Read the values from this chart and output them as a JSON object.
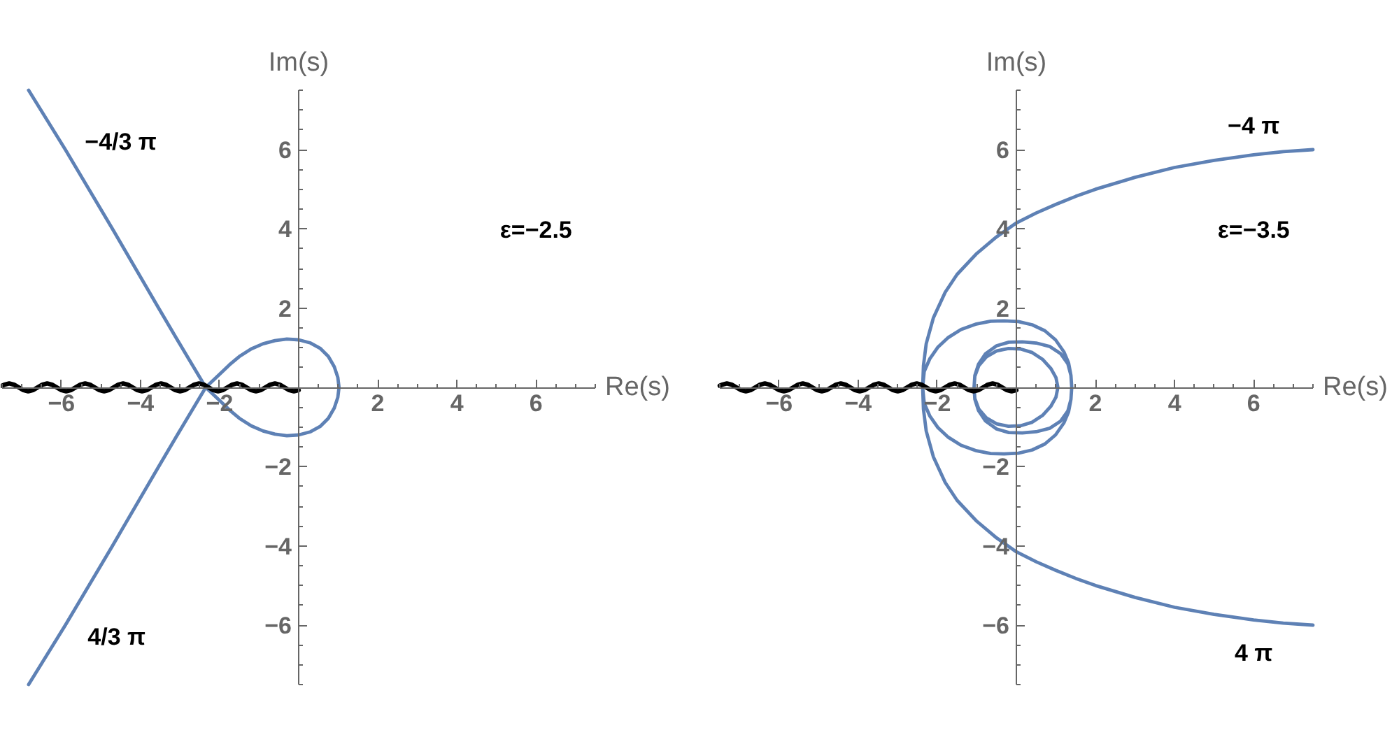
{
  "chart_data": [
    {
      "type": "line",
      "xlabel": "Re(s)",
      "ylabel": "Im(s)",
      "xlim": [
        -7.5,
        7.5
      ],
      "ylim": [
        -7.5,
        7.5
      ],
      "xticks": [
        {
          "value": -7.5,
          "label": null
        },
        {
          "value": -7,
          "label": null
        },
        {
          "value": -6.5,
          "label": null
        },
        -6,
        {
          "value": -5.5,
          "label": null
        },
        {
          "value": -5,
          "label": null
        },
        {
          "value": -4.5,
          "label": null
        },
        -4,
        {
          "value": -3.5,
          "label": null
        },
        {
          "value": -3,
          "label": null
        },
        {
          "value": -2.5,
          "label": null
        },
        -2,
        {
          "value": -1.5,
          "label": null
        },
        {
          "value": -1,
          "label": null
        },
        {
          "value": -0.5,
          "label": null
        },
        {
          "value": 0.5,
          "label": null
        },
        {
          "value": 1,
          "label": null
        },
        {
          "value": 1.5,
          "label": null
        },
        2,
        {
          "value": 2.5,
          "label": null
        },
        {
          "value": 3,
          "label": null
        },
        {
          "value": 3.5,
          "label": null
        },
        4,
        {
          "value": 4.5,
          "label": null
        },
        {
          "value": 5,
          "label": null
        },
        {
          "value": 5.5,
          "label": null
        },
        6,
        {
          "value": 6.5,
          "label": null
        },
        {
          "value": 7,
          "label": null
        },
        {
          "value": 7.5,
          "label": null
        }
      ],
      "yticks": [
        {
          "value": -7.5,
          "label": null
        },
        {
          "value": -7,
          "label": null
        },
        {
          "value": -6.5,
          "label": null
        },
        -6,
        {
          "value": -5.5,
          "label": null
        },
        {
          "value": -5,
          "label": null
        },
        {
          "value": -4.5,
          "label": null
        },
        -4,
        {
          "value": -3.5,
          "label": null
        },
        {
          "value": -3,
          "label": null
        },
        {
          "value": -2.5,
          "label": null
        },
        -2,
        {
          "value": -1.5,
          "label": null
        },
        {
          "value": -1,
          "label": null
        },
        {
          "value": -0.5,
          "label": null
        },
        {
          "value": 0.5,
          "label": null
        },
        {
          "value": 1,
          "label": null
        },
        {
          "value": 1.5,
          "label": null
        },
        2,
        {
          "value": 2.5,
          "label": null
        },
        {
          "value": 3,
          "label": null
        },
        {
          "value": 3.5,
          "label": null
        },
        4,
        {
          "value": 4.5,
          "label": null
        },
        {
          "value": 5,
          "label": null
        },
        {
          "value": 5.5,
          "label": null
        },
        6,
        {
          "value": 6.5,
          "label": null
        },
        {
          "value": 7,
          "label": null
        },
        {
          "value": 7.5,
          "label": null
        }
      ],
      "series": [
        {
          "color": "#5e81b5",
          "x": [
            -6.83,
            -5.9,
            -4.71,
            -3.54,
            -2.95,
            -2.35,
            -2.0,
            -1.75,
            -1.5,
            -1.2,
            -0.9,
            -0.6,
            -0.3,
            0.0,
            0.3,
            0.55,
            0.75,
            0.9,
            0.99,
            1.02,
            0.99,
            0.9,
            0.75,
            0.55,
            0.3,
            0.0,
            -0.3,
            -0.6,
            -0.9,
            -1.2,
            -1.5,
            -1.75,
            -2.0,
            -2.35,
            -2.95,
            -3.54,
            -4.71,
            -5.9,
            -6.83
          ],
          "values": [
            7.5,
            6,
            4,
            2,
            1,
            0,
            -0.33,
            -0.57,
            -0.78,
            -0.97,
            -1.1,
            -1.18,
            -1.22,
            -1.2,
            -1.12,
            -0.98,
            -0.78,
            -0.52,
            -0.25,
            0,
            0.25,
            0.52,
            0.78,
            0.98,
            1.12,
            1.2,
            1.22,
            1.18,
            1.1,
            0.97,
            0.78,
            0.57,
            0.33,
            0,
            -1,
            -2,
            -4,
            -6,
            -7.5
          ]
        },
        {
          "color": "#000000",
          "x": [
            -7.5,
            -7.44,
            -7.32,
            -7.2,
            -7.08,
            -6.96,
            -6.84,
            -6.72,
            -6.6,
            -6.48,
            -6.36,
            -6.24,
            -6.12,
            -6.0,
            -5.88,
            -5.76,
            -5.64,
            -5.52,
            -5.4,
            -5.28,
            -5.16,
            -5.04,
            -4.92,
            -4.8,
            -4.68,
            -4.56,
            -4.44,
            -4.32,
            -4.2,
            -4.08,
            -3.96,
            -3.84,
            -3.72,
            -3.6,
            -3.48,
            -3.36,
            -3.24,
            -3.12,
            -3.0,
            -2.88,
            -2.76,
            -2.64,
            -2.52,
            -2.4,
            -2.28,
            -2.16,
            -2.04,
            -1.92,
            -1.8,
            -1.68,
            -1.56,
            -1.44,
            -1.32,
            -1.2,
            -1.08,
            -0.96,
            -0.84,
            -0.72,
            -0.6,
            -0.48,
            -0.36,
            -0.24,
            -0.12,
            0
          ],
          "values": [
            0.04,
            0.07,
            0.1,
            0.07,
            0,
            -0.07,
            -0.1,
            -0.07,
            0,
            0.07,
            0.1,
            0.07,
            0,
            -0.07,
            -0.1,
            -0.07,
            0,
            0.07,
            0.1,
            0.07,
            0,
            -0.07,
            -0.1,
            -0.07,
            0,
            0.07,
            0.1,
            0.07,
            0,
            -0.07,
            -0.1,
            -0.07,
            0,
            0.07,
            0.1,
            0.07,
            0,
            -0.07,
            -0.1,
            -0.07,
            0,
            0.07,
            0.1,
            0.07,
            0,
            -0.07,
            -0.1,
            -0.07,
            0,
            0.07,
            0.1,
            0.07,
            0,
            -0.07,
            -0.1,
            -0.07,
            0,
            0.07,
            0.1,
            0.07,
            0,
            -0.07,
            -0.1,
            -0.07
          ]
        }
      ],
      "annotations": [
        "−4/3 π",
        "4/3 π",
        "ε=−2.5"
      ]
    },
    {
      "type": "line",
      "xlabel": "Re(s)",
      "ylabel": "Im(s)",
      "xlim": [
        -7.5,
        7.5
      ],
      "ylim": [
        -7.5,
        7.5
      ],
      "xticks": [
        {
          "value": -7.5,
          "label": null
        },
        {
          "value": -7,
          "label": null
        },
        {
          "value": -6.5,
          "label": null
        },
        -6,
        {
          "value": -5.5,
          "label": null
        },
        {
          "value": -5,
          "label": null
        },
        {
          "value": -4.5,
          "label": null
        },
        -4,
        {
          "value": -3.5,
          "label": null
        },
        {
          "value": -3,
          "label": null
        },
        {
          "value": -2.5,
          "label": null
        },
        -2,
        {
          "value": -1.5,
          "label": null
        },
        {
          "value": -1,
          "label": null
        },
        {
          "value": -0.5,
          "label": null
        },
        {
          "value": 0.5,
          "label": null
        },
        {
          "value": 1,
          "label": null
        },
        {
          "value": 1.5,
          "label": null
        },
        2,
        {
          "value": 2.5,
          "label": null
        },
        {
          "value": 3,
          "label": null
        },
        {
          "value": 3.5,
          "label": null
        },
        4,
        {
          "value": 4.5,
          "label": null
        },
        {
          "value": 5,
          "label": null
        },
        {
          "value": 5.5,
          "label": null
        },
        6,
        {
          "value": 6.5,
          "label": null
        },
        {
          "value": 7,
          "label": null
        },
        {
          "value": 7.5,
          "label": null
        }
      ],
      "yticks": [
        {
          "value": -7.5,
          "label": null
        },
        {
          "value": -7,
          "label": null
        },
        {
          "value": -6.5,
          "label": null
        },
        -6,
        {
          "value": -5.5,
          "label": null
        },
        {
          "value": -5,
          "label": null
        },
        {
          "value": -4.5,
          "label": null
        },
        -4,
        {
          "value": -3.5,
          "label": null
        },
        {
          "value": -3,
          "label": null
        },
        {
          "value": -2.5,
          "label": null
        },
        -2,
        {
          "value": -1.5,
          "label": null
        },
        {
          "value": -1,
          "label": null
        },
        {
          "value": -0.5,
          "label": null
        },
        {
          "value": 0.5,
          "label": null
        },
        {
          "value": 1,
          "label": null
        },
        {
          "value": 1.5,
          "label": null
        },
        2,
        {
          "value": 2.5,
          "label": null
        },
        {
          "value": 3,
          "label": null
        },
        {
          "value": 3.5,
          "label": null
        },
        4,
        {
          "value": 4.5,
          "label": null
        },
        {
          "value": 5,
          "label": null
        },
        {
          "value": 5.5,
          "label": null
        },
        6,
        {
          "value": 6.5,
          "label": null
        },
        {
          "value": 7,
          "label": null
        },
        {
          "value": 7.5,
          "label": null
        }
      ],
      "series": [
        {
          "color": "#5e81b5",
          "x": [
            7.5,
            6.75,
            6,
            5,
            4,
            3,
            2,
            1.5,
            1,
            0.5,
            0,
            -0.5,
            -1,
            -1.5,
            -1.8,
            -2.1,
            -2.28,
            -2.35,
            -2.37,
            -2.33,
            -2.19,
            -1.98,
            -1.72,
            -1.4,
            -1.01,
            -0.65,
            -0.31,
            0.05,
            0.4,
            0.72,
            0.99,
            1.2,
            1.32,
            1.38,
            1.4,
            1.38,
            1.3,
            1.12,
            0.85,
            0.5,
            0.15,
            -0.19,
            -0.5,
            -0.78,
            -0.96,
            -1.05,
            -1.07,
            -1.05,
            -0.95,
            -0.76,
            -0.5,
            -0.2,
            0.1,
            0.4,
            0.67,
            0.87,
            1.0,
            1.05,
            1.0,
            0.87,
            0.67,
            0.4,
            0.1,
            -0.2,
            -0.5,
            -0.76,
            -0.95,
            -1.05,
            -1.07,
            -1.05,
            -0.96,
            -0.78,
            -0.5,
            -0.19,
            0.15,
            0.5,
            0.85,
            1.12,
            1.3,
            1.38,
            1.4,
            1.38,
            1.32,
            1.2,
            0.99,
            0.72,
            0.4,
            0.05,
            -0.31,
            -0.65,
            -1.01,
            -1.4,
            -1.72,
            -1.98,
            -2.19,
            -2.33,
            -2.37,
            -2.35,
            -2.28,
            -2.1,
            -1.8,
            -1.5,
            -1,
            -0.5,
            0,
            0.5,
            1,
            1.5,
            2,
            3,
            4,
            5,
            6,
            6.75,
            7.5
          ],
          "values": [
            6.0,
            5.95,
            5.87,
            5.73,
            5.55,
            5.3,
            5.0,
            4.82,
            4.62,
            4.4,
            4.15,
            3.8,
            3.38,
            2.85,
            2.4,
            1.75,
            1.1,
            0.55,
            0,
            -0.4,
            -0.72,
            -1.02,
            -1.26,
            -1.46,
            -1.6,
            -1.67,
            -1.68,
            -1.66,
            -1.58,
            -1.43,
            -1.2,
            -0.9,
            -0.62,
            -0.3,
            0,
            0.3,
            0.6,
            0.85,
            1.03,
            1.12,
            1.15,
            1.14,
            1.05,
            0.85,
            0.58,
            0.3,
            0,
            -0.28,
            -0.55,
            -0.77,
            -0.92,
            -0.98,
            -0.97,
            -0.88,
            -0.7,
            -0.48,
            -0.25,
            0,
            0.25,
            0.48,
            0.7,
            0.88,
            0.97,
            0.98,
            0.92,
            0.77,
            0.55,
            0.28,
            0,
            -0.3,
            -0.58,
            -0.85,
            -1.05,
            -1.14,
            -1.15,
            -1.12,
            -1.03,
            -0.85,
            -0.6,
            -0.3,
            0,
            0.3,
            0.62,
            0.9,
            1.2,
            1.43,
            1.58,
            1.66,
            1.68,
            1.67,
            1.6,
            1.46,
            1.26,
            1.02,
            0.72,
            0.4,
            0,
            -0.55,
            -1.1,
            -1.75,
            -2.4,
            -2.85,
            -3.38,
            -3.8,
            -4.15,
            -4.4,
            -4.62,
            -4.82,
            -5.0,
            -5.3,
            -5.55,
            -5.73,
            -5.87,
            -5.95,
            -6.0
          ]
        },
        {
          "color": "#000000",
          "x": [
            -7.5,
            -7.44,
            -7.32,
            -7.2,
            -7.08,
            -6.96,
            -6.84,
            -6.72,
            -6.6,
            -6.48,
            -6.36,
            -6.24,
            -6.12,
            -6.0,
            -5.88,
            -5.76,
            -5.64,
            -5.52,
            -5.4,
            -5.28,
            -5.16,
            -5.04,
            -4.92,
            -4.8,
            -4.68,
            -4.56,
            -4.44,
            -4.32,
            -4.2,
            -4.08,
            -3.96,
            -3.84,
            -3.72,
            -3.6,
            -3.48,
            -3.36,
            -3.24,
            -3.12,
            -3.0,
            -2.88,
            -2.76,
            -2.64,
            -2.52,
            -2.4,
            -2.28,
            -2.16,
            -2.04,
            -1.92,
            -1.8,
            -1.68,
            -1.56,
            -1.44,
            -1.32,
            -1.2,
            -1.08,
            -0.96,
            -0.84,
            -0.72,
            -0.6,
            -0.48,
            -0.36,
            -0.24,
            -0.12,
            0
          ],
          "values": [
            0.04,
            0.07,
            0.1,
            0.07,
            0,
            -0.07,
            -0.1,
            -0.07,
            0,
            0.07,
            0.1,
            0.07,
            0,
            -0.07,
            -0.1,
            -0.07,
            0,
            0.07,
            0.1,
            0.07,
            0,
            -0.07,
            -0.1,
            -0.07,
            0,
            0.07,
            0.1,
            0.07,
            0,
            -0.07,
            -0.1,
            -0.07,
            0,
            0.07,
            0.1,
            0.07,
            0,
            -0.07,
            -0.1,
            -0.07,
            0,
            0.07,
            0.1,
            0.07,
            0,
            -0.07,
            -0.1,
            -0.07,
            0,
            0.07,
            0.1,
            0.07,
            0,
            -0.07,
            -0.1,
            -0.07,
            0,
            0.07,
            0.1,
            0.07,
            0,
            -0.07,
            -0.1,
            -0.07
          ]
        }
      ],
      "annotations": [
        "−4 π",
        "4 π",
        "ε=−3.5"
      ]
    }
  ]
}
